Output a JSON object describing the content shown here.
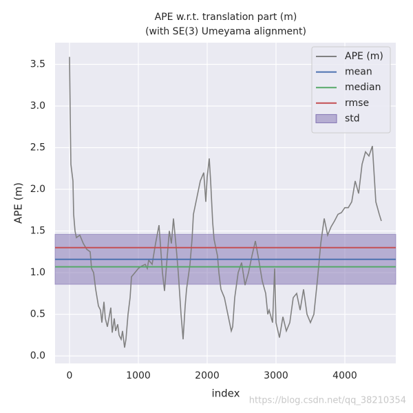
{
  "chart_data": {
    "type": "line",
    "title": [
      "APE w.r.t. translation part (m)",
      "(with SE(3) Umeyama alignment)"
    ],
    "xlabel": "index",
    "ylabel": "APE (m)",
    "watermark": "https://blog.csdn.net/qq_38210354",
    "xlim": [
      -210,
      4740
    ],
    "ylim": [
      -0.09,
      3.76
    ],
    "xticks": [
      0,
      1000,
      2000,
      3000,
      4000
    ],
    "yticks": [
      {
        "value": 0,
        "label": "0.0"
      },
      {
        "value": 0.5,
        "label": "0.5"
      },
      {
        "value": 1,
        "label": "1.0"
      },
      {
        "value": 1.5,
        "label": "1.5"
      },
      {
        "value": 2,
        "label": "2.0"
      },
      {
        "value": 2.5,
        "label": "2.5"
      },
      {
        "value": 3,
        "label": "3.0"
      },
      {
        "value": 3.5,
        "label": "3.5"
      }
    ],
    "grid": true,
    "legend": "upper right",
    "series": [
      {
        "name": "APE (m)",
        "color": "#808080",
        "x": [
          0,
          10,
          20,
          50,
          60,
          80,
          100,
          150,
          200,
          250,
          300,
          320,
          350,
          380,
          400,
          420,
          450,
          470,
          500,
          520,
          550,
          600,
          620,
          650,
          670,
          700,
          720,
          750,
          770,
          800,
          820,
          850,
          880,
          900,
          950,
          1000,
          1050,
          1100,
          1130,
          1150,
          1200,
          1250,
          1300,
          1350,
          1380,
          1420,
          1450,
          1480,
          1510,
          1550,
          1580,
          1620,
          1650,
          1680,
          1700,
          1750,
          1780,
          1800,
          1850,
          1900,
          1950,
          1980,
          2000,
          2030,
          2050,
          2080,
          2100,
          2150,
          2170,
          2200,
          2250,
          2300,
          2350,
          2370,
          2400,
          2450,
          2500,
          2550,
          2600,
          2650,
          2700,
          2750,
          2800,
          2850,
          2880,
          2900,
          2950,
          2980,
          3000,
          3050,
          3100,
          3150,
          3200,
          3250,
          3300,
          3350,
          3400,
          3450,
          3500,
          3550,
          3600,
          3650,
          3700,
          3750,
          3800,
          3850,
          3900,
          3950,
          4000,
          4050,
          4100,
          4150,
          4200,
          4250,
          4300,
          4350,
          4400,
          4450,
          4500,
          4530
        ],
        "values": [
          3.59,
          2.9,
          2.3,
          2.1,
          1.7,
          1.5,
          1.42,
          1.45,
          1.35,
          1.28,
          1.25,
          1.05,
          1.0,
          0.8,
          0.7,
          0.6,
          0.55,
          0.4,
          0.65,
          0.45,
          0.35,
          0.58,
          0.28,
          0.45,
          0.3,
          0.38,
          0.25,
          0.2,
          0.3,
          0.1,
          0.2,
          0.5,
          0.7,
          0.95,
          1.0,
          1.05,
          1.08,
          1.1,
          1.05,
          1.15,
          1.1,
          1.35,
          1.57,
          1.0,
          0.78,
          1.2,
          1.5,
          1.35,
          1.65,
          1.3,
          1.0,
          0.5,
          0.2,
          0.6,
          0.8,
          1.1,
          1.4,
          1.7,
          1.9,
          2.1,
          2.2,
          1.85,
          2.15,
          2.37,
          2.1,
          1.6,
          1.4,
          1.2,
          1.0,
          0.8,
          0.7,
          0.5,
          0.3,
          0.35,
          0.7,
          1.0,
          1.12,
          0.85,
          1.0,
          1.2,
          1.38,
          1.15,
          0.9,
          0.75,
          0.5,
          0.55,
          0.4,
          1.05,
          0.4,
          0.22,
          0.47,
          0.3,
          0.4,
          0.7,
          0.75,
          0.55,
          0.8,
          0.5,
          0.4,
          0.5,
          0.9,
          1.35,
          1.65,
          1.45,
          1.55,
          1.62,
          1.7,
          1.72,
          1.78,
          1.78,
          1.85,
          2.1,
          1.95,
          2.3,
          2.45,
          2.4,
          2.52,
          1.85,
          1.7,
          1.62
        ]
      }
    ],
    "hlines": [
      {
        "name": "mean",
        "color": "#4c72b0",
        "value": 1.16
      },
      {
        "name": "median",
        "color": "#55a868",
        "value": 1.07
      },
      {
        "name": "rmse",
        "color": "#c44e52",
        "value": 1.3
      }
    ],
    "band": {
      "name": "std",
      "color": "#8172b2",
      "range": [
        0.86,
        1.46
      ]
    }
  }
}
